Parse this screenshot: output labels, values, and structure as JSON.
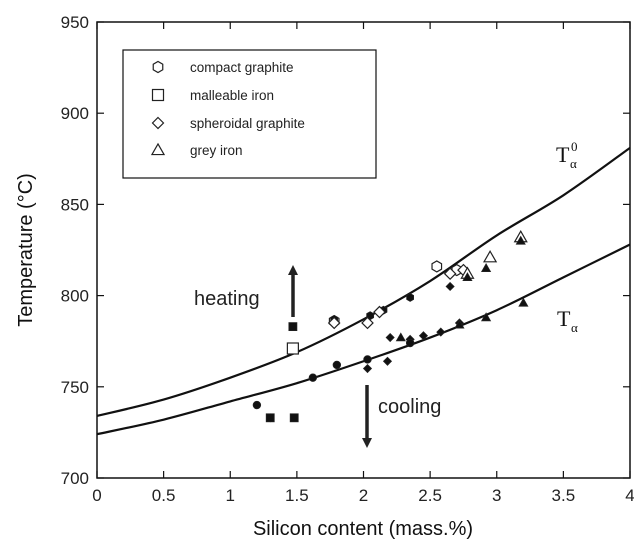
{
  "chart_data": {
    "type": "scatter",
    "xlabel": "Silicon content (mass.%)",
    "ylabel": "Temperature (°C)",
    "xlim": [
      0,
      4
    ],
    "ylim": [
      700,
      950
    ],
    "x_ticks": [
      "0",
      "0.5",
      "1",
      "1.5",
      "2",
      "2.5",
      "3",
      "3.5",
      "4"
    ],
    "y_ticks": [
      "700",
      "750",
      "800",
      "850",
      "900",
      "950"
    ],
    "grid": false,
    "legend_position": "top-left",
    "legend": [
      {
        "marker": "hexagon-open",
        "label": "compact graphite"
      },
      {
        "marker": "square-open",
        "label": "malleable iron"
      },
      {
        "marker": "diamond-open",
        "label": "spheroidal graphite"
      },
      {
        "marker": "triangle-open",
        "label": "grey iron"
      }
    ],
    "curves": [
      {
        "label": "T",
        "subscript": "α",
        "superscript": "0",
        "x": [
          0,
          0.5,
          1,
          1.5,
          2,
          2.5,
          3,
          3.5,
          4
        ],
        "y": [
          734,
          743,
          755,
          769,
          787,
          808,
          833,
          855,
          881
        ]
      },
      {
        "label": "T",
        "subscript": "α",
        "superscript": "",
        "x": [
          0,
          0.5,
          1,
          1.5,
          2,
          2.5,
          3,
          3.5,
          4
        ],
        "y": [
          724,
          732,
          742,
          752,
          764,
          777,
          792,
          810,
          828
        ]
      }
    ],
    "series": [
      {
        "marker": "hexagon-open",
        "points": [
          [
            1.78,
            786
          ],
          [
            2.55,
            816
          ],
          [
            2.7,
            814
          ]
        ]
      },
      {
        "marker": "hexagon-filled",
        "points": [
          [
            1.78,
            787
          ],
          [
            2.05,
            789
          ],
          [
            2.15,
            792
          ],
          [
            2.35,
            799
          ],
          [
            1.3,
            733
          ]
        ]
      },
      {
        "marker": "square-open",
        "points": [
          [
            1.47,
            771
          ]
        ]
      },
      {
        "marker": "square-filled",
        "points": [
          [
            1.47,
            783
          ],
          [
            1.3,
            733
          ],
          [
            1.48,
            733
          ]
        ]
      },
      {
        "marker": "diamond-open",
        "points": [
          [
            1.78,
            785
          ],
          [
            2.03,
            785
          ],
          [
            2.12,
            791
          ],
          [
            2.65,
            812
          ],
          [
            2.75,
            814
          ]
        ]
      },
      {
        "marker": "diamond-filled",
        "points": [
          [
            2.2,
            777
          ],
          [
            2.35,
            776
          ],
          [
            2.45,
            778
          ],
          [
            2.58,
            780
          ],
          [
            2.65,
            805
          ],
          [
            2.72,
            785
          ],
          [
            2.03,
            760
          ],
          [
            2.18,
            764
          ]
        ]
      },
      {
        "marker": "triangle-open",
        "points": [
          [
            2.78,
            812
          ],
          [
            2.95,
            821
          ],
          [
            3.18,
            832
          ]
        ]
      },
      {
        "marker": "triangle-filled",
        "points": [
          [
            2.28,
            777
          ],
          [
            2.78,
            810
          ],
          [
            2.92,
            815
          ],
          [
            3.18,
            830
          ],
          [
            2.72,
            784
          ],
          [
            2.92,
            788
          ],
          [
            3.2,
            796
          ]
        ]
      },
      {
        "marker": "circle-filled",
        "points": [
          [
            1.2,
            740
          ],
          [
            1.62,
            755
          ],
          [
            1.8,
            762
          ],
          [
            2.03,
            765
          ],
          [
            2.35,
            774
          ]
        ]
      }
    ],
    "annotations": [
      {
        "text": "heating",
        "arrow": "up"
      },
      {
        "text": "cooling",
        "arrow": "down"
      }
    ]
  }
}
